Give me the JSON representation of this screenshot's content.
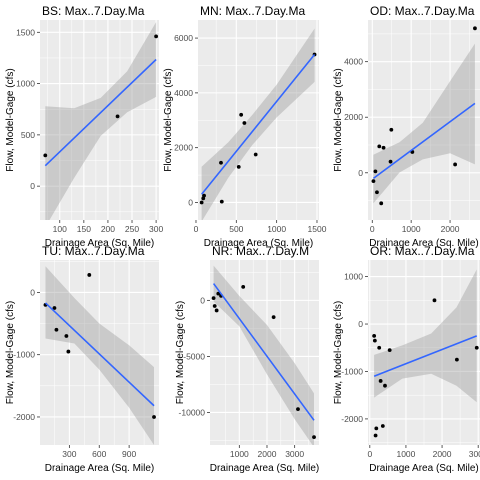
{
  "chart_data": [
    {
      "type": "scatter",
      "title": "BS: Max..7.Day.Ma",
      "xlabel": "Drainage Area (Sq. Mile)",
      "ylabel": "Flow, Model-Gage (cfs)",
      "xlim": [
        59,
        306
      ],
      "ylim": [
        -330,
        1620
      ],
      "xticks": [
        100,
        150,
        200,
        250,
        300
      ],
      "xtick_labels": [
        "100",
        "150",
        "200",
        "250",
        "300"
      ],
      "yticks": [
        0,
        500,
        1000,
        1500
      ],
      "ytick_labels": [
        "0",
        "500",
        "1000",
        "1500"
      ],
      "points": [
        [
          70,
          300
        ],
        [
          220,
          680
        ],
        [
          300,
          1460
        ]
      ],
      "fit": [
        [
          70,
          200
        ],
        [
          300,
          1235
        ]
      ],
      "band_upper": [
        [
          70,
          780
        ],
        [
          130,
          760
        ],
        [
          185,
          860
        ],
        [
          240,
          1120
        ],
        [
          300,
          1600
        ]
      ],
      "band_lower": [
        [
          70,
          -400
        ],
        [
          130,
          80
        ],
        [
          185,
          490
        ],
        [
          240,
          720
        ],
        [
          300,
          870
        ]
      ]
    },
    {
      "type": "scatter",
      "title": "MN: Max..7.Day.Ma",
      "xlabel": "Drainage Area (Sq. Mile)",
      "ylabel": "Flow, Model-Gage (cfs)",
      "xlim": [
        25,
        1525
      ],
      "ylim": [
        -640,
        6660
      ],
      "xticks": [
        0,
        500,
        1000,
        1500
      ],
      "xtick_labels": [
        "0",
        "500",
        "1000",
        "1500"
      ],
      "yticks": [
        0,
        2000,
        4000,
        6000
      ],
      "ytick_labels": [
        "0",
        "2000",
        "4000",
        "6000"
      ],
      "points": [
        [
          70,
          0
        ],
        [
          90,
          150
        ],
        [
          100,
          250
        ],
        [
          310,
          1450
        ],
        [
          320,
          30
        ],
        [
          530,
          1300
        ],
        [
          560,
          3200
        ],
        [
          600,
          2900
        ],
        [
          740,
          1750
        ],
        [
          1470,
          5400
        ]
      ],
      "fit": [
        [
          70,
          300
        ],
        [
          1470,
          5400
        ]
      ],
      "band_upper": [
        [
          70,
          1300
        ],
        [
          400,
          2200
        ],
        [
          700,
          3200
        ],
        [
          1000,
          4300
        ],
        [
          1470,
          6350
        ]
      ],
      "band_lower": [
        [
          70,
          -700
        ],
        [
          400,
          900
        ],
        [
          700,
          2100
        ],
        [
          1000,
          3100
        ],
        [
          1470,
          4400
        ]
      ]
    },
    {
      "type": "scatter",
      "title": "OD: Max..7.Day.Ma",
      "xlabel": "Drainage Area (Sq. Mile)",
      "ylabel": "Flow, Model-Gage (cfs)",
      "xlim": [
        -110,
        2770
      ],
      "ylim": [
        -1700,
        5500
      ],
      "xticks": [
        0,
        1000,
        2000
      ],
      "xtick_labels": [
        "0",
        "1000",
        "2000"
      ],
      "yticks": [
        0,
        2000,
        4000
      ],
      "ytick_labels": [
        "0",
        "2000",
        "4000"
      ],
      "points": [
        [
          30,
          -300
        ],
        [
          80,
          50
        ],
        [
          120,
          -700
        ],
        [
          180,
          950
        ],
        [
          230,
          -1100
        ],
        [
          290,
          900
        ],
        [
          470,
          400
        ],
        [
          490,
          1550
        ],
        [
          1030,
          750
        ],
        [
          2130,
          300
        ],
        [
          2640,
          5200
        ]
      ],
      "fit": [
        [
          30,
          -200
        ],
        [
          2640,
          2500
        ]
      ],
      "band_upper": [
        [
          30,
          650
        ],
        [
          700,
          1100
        ],
        [
          1300,
          1800
        ],
        [
          2000,
          3300
        ],
        [
          2640,
          4650
        ]
      ],
      "band_lower": [
        [
          30,
          -1100
        ],
        [
          700,
          10
        ],
        [
          1300,
          480
        ],
        [
          2000,
          700
        ],
        [
          2640,
          300
        ]
      ]
    },
    {
      "type": "scatter",
      "title": "TU: Max..7.Day.Ma",
      "xlabel": "Drainage Area (Sq. Mile)",
      "ylabel": "Flow, Model-Gage (cfs)",
      "xlim": [
        5,
        1200
      ],
      "ylim": [
        -2450,
        520
      ],
      "xticks": [
        300,
        600,
        900
      ],
      "xtick_labels": [
        "300",
        "600",
        "900"
      ],
      "yticks": [
        -2000,
        -1000,
        0
      ],
      "ytick_labels": [
        "-2000",
        "-1000",
        "0"
      ],
      "points": [
        [
          60,
          -200
        ],
        [
          150,
          -250
        ],
        [
          170,
          -600
        ],
        [
          270,
          -700
        ],
        [
          290,
          -950
        ],
        [
          500,
          280
        ],
        [
          1150,
          -2000
        ]
      ],
      "fit": [
        [
          60,
          -170
        ],
        [
          1150,
          -1820
        ]
      ],
      "band_upper": [
        [
          60,
          420
        ],
        [
          350,
          -90
        ],
        [
          600,
          -500
        ],
        [
          900,
          -850
        ],
        [
          1150,
          -1200
        ]
      ],
      "band_lower": [
        [
          60,
          -740
        ],
        [
          350,
          -820
        ],
        [
          600,
          -1240
        ],
        [
          900,
          -1850
        ],
        [
          1150,
          -2450
        ]
      ]
    },
    {
      "type": "scatter",
      "title": "NR: Max..7.Day.M",
      "xlabel": "Drainage Area (Sq. Mile)",
      "ylabel": "Flow, Model-Gage (cfs)",
      "xlim": [
        -60,
        3880
      ],
      "ylim": [
        -12900,
        3600
      ],
      "xticks": [
        1000,
        2000,
        3000
      ],
      "xtick_labels": [
        "1000",
        "2000",
        "3000"
      ],
      "yticks": [
        -10000,
        -5000,
        0
      ],
      "ytick_labels": [
        "-10000",
        "-5000",
        "0"
      ],
      "points": [
        [
          70,
          200
        ],
        [
          110,
          -500
        ],
        [
          180,
          -900
        ],
        [
          240,
          600
        ],
        [
          340,
          400
        ],
        [
          1140,
          1200
        ],
        [
          2240,
          -1500
        ],
        [
          3120,
          -9700
        ],
        [
          3700,
          -12200
        ]
      ],
      "fit": [
        [
          70,
          1500
        ],
        [
          3700,
          -10700
        ]
      ],
      "band_upper": [
        [
          70,
          3100
        ],
        [
          1000,
          400
        ],
        [
          2000,
          -2200
        ],
        [
          3000,
          -5600
        ],
        [
          3700,
          -8300
        ]
      ],
      "band_lower": [
        [
          70,
          -100
        ],
        [
          1000,
          -2300
        ],
        [
          2000,
          -6600
        ],
        [
          3000,
          -10600
        ],
        [
          3700,
          -13100
        ]
      ]
    },
    {
      "type": "scatter",
      "title": "OR: Max..7.Day.Ma",
      "xlabel": "Drainage Area (Sq. Mile)",
      "ylabel": "Flow, Model-Gage (cfs)",
      "xlim": [
        -50,
        3050
      ],
      "ylim": [
        -2550,
        1350
      ],
      "xticks": [
        0,
        1000,
        2000,
        3000
      ],
      "xtick_labels": [
        "0",
        "1000",
        "2000",
        "3000"
      ],
      "yticks": [
        -2000,
        -1000,
        0,
        1000
      ],
      "ytick_labels": [
        "-2000",
        "-1000",
        "0",
        "1000"
      ],
      "points": [
        [
          120,
          -250
        ],
        [
          140,
          -350
        ],
        [
          160,
          -2350
        ],
        [
          180,
          -2200
        ],
        [
          260,
          -500
        ],
        [
          300,
          -1200
        ],
        [
          360,
          -2150
        ],
        [
          420,
          -1300
        ],
        [
          550,
          -550
        ],
        [
          1790,
          500
        ],
        [
          2410,
          -750
        ],
        [
          2960,
          -500
        ]
      ],
      "fit": [
        [
          120,
          -1100
        ],
        [
          2960,
          -250
        ]
      ],
      "band_upper": [
        [
          120,
          -650
        ],
        [
          900,
          -450
        ],
        [
          1700,
          -200
        ],
        [
          2400,
          350
        ],
        [
          2960,
          1150
        ]
      ],
      "band_lower": [
        [
          120,
          -1550
        ],
        [
          900,
          -1150
        ],
        [
          1700,
          -1050
        ],
        [
          2400,
          -1300
        ],
        [
          2960,
          -1650
        ]
      ]
    }
  ]
}
